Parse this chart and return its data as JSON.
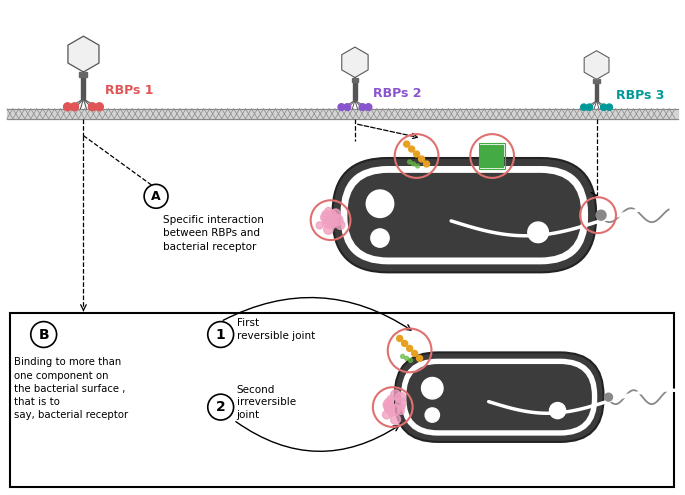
{
  "rbp1_color": "#e05555",
  "rbp2_color": "#8855cc",
  "rbp3_color": "#009999",
  "membrane_color": "#bbbbbb",
  "bacterium_body_color": "#3a3a3a",
  "pink_circle_color": "#e07070",
  "orange_dots_color": "#e8a020",
  "green_rods_color": "#44aa44",
  "label_rbp1": "RBPs 1",
  "label_rbp2": "RBPs 2",
  "label_rbp3": "RBPs 3",
  "text_A": "Specific interaction\nbetween RBPs and\nbacterial receptor",
  "text_B": "Binding to more than\none component on\nthe bacterial surface ,\nthat is to\nsay, bacterial receptor",
  "text_1": "First\nreversible joint",
  "text_2": "Second\nirreversible\njoint"
}
